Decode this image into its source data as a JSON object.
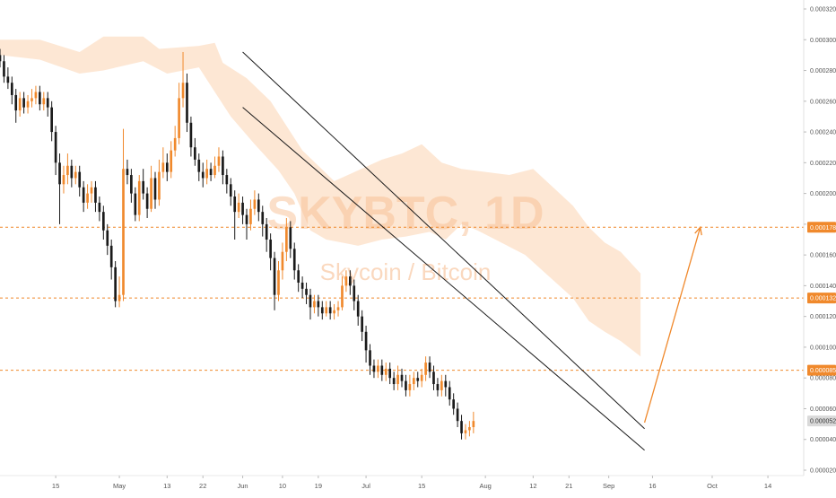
{
  "chart_data": {
    "type": "candlestick",
    "watermark": {
      "symbol": "SKYBTC, 1D",
      "description": "Skycoin / Bitcoin"
    },
    "ylim": [
      2e-05,
      0.00032
    ],
    "y_ticks": [
      "0.000020",
      "0.000040",
      "0.000060",
      "0.000080",
      "0.000100",
      "0.000120",
      "0.000140",
      "0.000160",
      "0.000180",
      "0.000200",
      "0.000220",
      "0.000240",
      "0.000260",
      "0.000280",
      "0.000300",
      "0.000320"
    ],
    "x_ticks": [
      "15",
      "May",
      "13",
      "22",
      "Jun",
      "10",
      "19",
      "Jul",
      "15",
      "Aug",
      "12",
      "21",
      "Sep",
      "16",
      "Oct",
      "14"
    ],
    "x_tick_days": [
      -2,
      14,
      26,
      35,
      45,
      55,
      64,
      76,
      90,
      106,
      118,
      127,
      137,
      148,
      163,
      177
    ],
    "xlim_days": [
      -16,
      186
    ],
    "price_labels": [
      {
        "text": "0.000178",
        "value": 0.000178,
        "color": "#f0892c",
        "line": true
      },
      {
        "text": "0.000132",
        "value": 0.000132,
        "color": "#f0892c",
        "line": true
      },
      {
        "text": "0.000085",
        "value": 8.5e-05,
        "color": "#f0892c",
        "line": true
      },
      {
        "text": "0.000052",
        "value": 5.2e-05,
        "color": "#d9d9d9",
        "line": false
      }
    ],
    "colors": {
      "up": "#f0892c",
      "down": "#1a1a1a",
      "cloud": "#fde3cd",
      "level": "#f0892c",
      "trend": "#1a1a1a"
    },
    "wedge_upper": [
      [
        45,
        0.000292
      ],
      [
        146,
        4.7e-05
      ]
    ],
    "wedge_lower": [
      [
        45,
        0.000256
      ],
      [
        146,
        3.3e-05
      ]
    ],
    "projection": [
      [
        146,
        5.1e-05
      ],
      [
        160,
        0.000178
      ]
    ],
    "cloud_top": [
      [
        -16,
        0.0003
      ],
      [
        -6,
        0.0003
      ],
      [
        4,
        0.000292
      ],
      [
        10,
        0.000302
      ],
      [
        20,
        0.000302
      ],
      [
        24,
        0.000294
      ],
      [
        34,
        0.000296
      ],
      [
        38,
        0.000298
      ],
      [
        40,
        0.000285
      ],
      [
        46,
        0.000275
      ],
      [
        52,
        0.00026
      ],
      [
        60,
        0.000228
      ],
      [
        68,
        0.000208
      ],
      [
        74,
        0.000215
      ],
      [
        80,
        0.000222
      ],
      [
        85,
        0.000226
      ],
      [
        90,
        0.000232
      ],
      [
        95,
        0.00022
      ],
      [
        100,
        0.000216
      ],
      [
        106,
        0.000214
      ],
      [
        112,
        0.000212
      ],
      [
        118,
        0.000216
      ],
      [
        123,
        0.000204
      ],
      [
        128,
        0.000192
      ],
      [
        132,
        0.000178
      ],
      [
        136,
        0.000168
      ],
      [
        140,
        0.000162
      ],
      [
        145,
        0.000148
      ]
    ],
    "cloud_bottom": [
      [
        -16,
        0.00029
      ],
      [
        -6,
        0.000287
      ],
      [
        4,
        0.000278
      ],
      [
        10,
        0.00028
      ],
      [
        20,
        0.000286
      ],
      [
        26,
        0.000278
      ],
      [
        34,
        0.000282
      ],
      [
        38,
        0.000266
      ],
      [
        42,
        0.00025
      ],
      [
        48,
        0.000232
      ],
      [
        54,
        0.000215
      ],
      [
        58,
        0.0002
      ],
      [
        62,
        0.000176
      ],
      [
        66,
        0.00017
      ],
      [
        70,
        0.000168
      ],
      [
        74,
        0.000166
      ],
      [
        80,
        0.00017
      ],
      [
        86,
        0.000172
      ],
      [
        92,
        0.000175
      ],
      [
        96,
        0.00017
      ],
      [
        100,
        0.00018
      ],
      [
        104,
        0.000176
      ],
      [
        110,
        0.000168
      ],
      [
        116,
        0.00016
      ],
      [
        122,
        0.000146
      ],
      [
        128,
        0.000132
      ],
      [
        132,
        0.000117
      ],
      [
        136,
        0.00011
      ],
      [
        140,
        0.000104
      ],
      [
        145,
        9.4e-05
      ]
    ],
    "candles": [
      [
        -16,
        0.00029,
        0.000286,
        0.000294,
        0.000282
      ],
      [
        -15,
        0.000286,
        0.000276,
        0.00029,
        0.000272
      ],
      [
        -14,
        0.000276,
        0.000272,
        0.000282,
        0.000268
      ],
      [
        -13,
        0.000272,
        0.000264,
        0.000276,
        0.000258
      ],
      [
        -12,
        0.000264,
        0.000254,
        0.000268,
        0.000246
      ],
      [
        -11,
        0.000254,
        0.000262,
        0.000266,
        0.00025
      ],
      [
        -10,
        0.000262,
        0.000256,
        0.000266,
        0.000252
      ],
      [
        -9,
        0.000256,
        0.00026,
        0.000264,
        0.000252
      ],
      [
        -8,
        0.00026,
        0.000262,
        0.000268,
        0.000256
      ],
      [
        -7,
        0.000262,
        0.000266,
        0.00027,
        0.000258
      ],
      [
        -6,
        0.000266,
        0.000258,
        0.00027,
        0.000254
      ],
      [
        -5,
        0.000258,
        0.000262,
        0.000266,
        0.000254
      ],
      [
        -4,
        0.000262,
        0.000256,
        0.000266,
        0.00025
      ],
      [
        -3,
        0.000256,
        0.00024,
        0.00026,
        0.000234
      ],
      [
        -2,
        0.00024,
        0.00022,
        0.000244,
        0.000212
      ],
      [
        -1,
        0.00022,
        0.000206,
        0.000226,
        0.00018
      ],
      [
        0,
        0.000206,
        0.000212,
        0.000218,
        0.0002
      ],
      [
        1,
        0.000212,
        0.000218,
        0.000226,
        0.000206
      ],
      [
        2,
        0.000218,
        0.00021,
        0.000222,
        0.000204
      ],
      [
        3,
        0.00021,
        0.000214,
        0.000218,
        0.000206
      ],
      [
        4,
        0.000214,
        0.000204,
        0.000218,
        0.000198
      ],
      [
        5,
        0.000204,
        0.000194,
        0.000208,
        0.000188
      ],
      [
        6,
        0.000194,
        0.0002,
        0.000206,
        0.00019
      ],
      [
        7,
        0.0002,
        0.000204,
        0.000208,
        0.000194
      ],
      [
        8,
        0.000204,
        0.000194,
        0.000208,
        0.000188
      ],
      [
        9,
        0.000194,
        0.000188,
        0.000198,
        0.000182
      ],
      [
        10,
        0.000188,
        0.000176,
        0.000192,
        0.00017
      ],
      [
        11,
        0.000176,
        0.000166,
        0.00018,
        0.00016
      ],
      [
        12,
        0.000166,
        0.000152,
        0.00017,
        0.000144
      ],
      [
        13,
        0.000152,
        0.00013,
        0.000156,
        0.000126
      ],
      [
        14,
        0.00013,
        0.000134,
        0.000146,
        0.000126
      ],
      [
        15,
        0.000134,
        0.000216,
        0.000242,
        0.00013
      ],
      [
        16,
        0.000216,
        0.000212,
        0.000222,
        0.000206
      ],
      [
        17,
        0.000212,
        0.0002,
        0.000216,
        0.000194
      ],
      [
        18,
        0.0002,
        0.000186,
        0.000204,
        0.000182
      ],
      [
        19,
        0.000186,
        0.000208,
        0.000212,
        0.000182
      ],
      [
        20,
        0.000208,
        0.0002,
        0.000216,
        0.000196
      ],
      [
        21,
        0.0002,
        0.00019,
        0.000204,
        0.000184
      ],
      [
        22,
        0.00019,
        0.00021,
        0.000218,
        0.000188
      ],
      [
        23,
        0.00021,
        0.000196,
        0.000214,
        0.00019
      ],
      [
        24,
        0.000196,
        0.000214,
        0.000222,
        0.000192
      ],
      [
        25,
        0.000214,
        0.00022,
        0.00023,
        0.00021
      ],
      [
        26,
        0.00022,
        0.000214,
        0.000226,
        0.000208
      ],
      [
        27,
        0.000214,
        0.000228,
        0.000234,
        0.00021
      ],
      [
        28,
        0.000228,
        0.000236,
        0.000244,
        0.000224
      ],
      [
        29,
        0.000236,
        0.000262,
        0.000272,
        0.000232
      ],
      [
        30,
        0.000262,
        0.000272,
        0.000292,
        0.000256
      ],
      [
        31,
        0.000272,
        0.000246,
        0.000278,
        0.00024
      ],
      [
        32,
        0.000246,
        0.00023,
        0.00025,
        0.000224
      ],
      [
        33,
        0.00023,
        0.000222,
        0.000236,
        0.000218
      ],
      [
        34,
        0.000222,
        0.000214,
        0.000226,
        0.000208
      ],
      [
        35,
        0.000214,
        0.00021,
        0.00022,
        0.000204
      ],
      [
        36,
        0.00021,
        0.000216,
        0.000222,
        0.000206
      ],
      [
        37,
        0.000216,
        0.000212,
        0.00022,
        0.000208
      ],
      [
        38,
        0.000212,
        0.000218,
        0.000224,
        0.00021
      ],
      [
        39,
        0.000218,
        0.000224,
        0.00023,
        0.000214
      ],
      [
        40,
        0.000224,
        0.000212,
        0.000228,
        0.000206
      ],
      [
        41,
        0.000212,
        0.000206,
        0.000216,
        0.0002
      ],
      [
        42,
        0.000206,
        0.000198,
        0.00021,
        0.000192
      ],
      [
        43,
        0.000198,
        0.000188,
        0.000202,
        0.00017
      ],
      [
        44,
        0.000188,
        0.000194,
        0.0002,
        0.000184
      ],
      [
        45,
        0.000194,
        0.000186,
        0.000198,
        0.00018
      ],
      [
        46,
        0.000186,
        0.00018,
        0.00019,
        0.00017
      ],
      [
        47,
        0.00018,
        0.00019,
        0.000196,
        0.000176
      ],
      [
        48,
        0.00019,
        0.000196,
        0.000202,
        0.000186
      ],
      [
        49,
        0.000196,
        0.000188,
        0.0002,
        0.000182
      ],
      [
        50,
        0.000188,
        0.00018,
        0.000192,
        0.000172
      ],
      [
        51,
        0.00018,
        0.00017,
        0.000184,
        0.000162
      ],
      [
        52,
        0.00017,
        0.000158,
        0.000174,
        0.00015
      ],
      [
        53,
        0.000158,
        0.000134,
        0.000162,
        0.000124
      ],
      [
        54,
        0.000134,
        0.00015,
        0.000156,
        0.00013
      ],
      [
        55,
        0.00015,
        0.000162,
        0.000168,
        0.000144
      ],
      [
        56,
        0.000162,
        0.000178,
        0.000184,
        0.000156
      ],
      [
        57,
        0.000178,
        0.000164,
        0.000182,
        0.000158
      ],
      [
        58,
        0.000164,
        0.00015,
        0.000168,
        0.000144
      ],
      [
        59,
        0.00015,
        0.000142,
        0.000154,
        0.000136
      ],
      [
        60,
        0.000142,
        0.000138,
        0.000146,
        0.000132
      ],
      [
        61,
        0.000138,
        0.000134,
        0.000142,
        0.000128
      ],
      [
        62,
        0.000134,
        0.000126,
        0.000138,
        0.000118
      ],
      [
        63,
        0.000126,
        0.00013,
        0.000134,
        0.000122
      ],
      [
        64,
        0.00013,
        0.000126,
        0.000134,
        0.00012
      ],
      [
        65,
        0.000126,
        0.000122,
        0.00013,
        0.000118
      ],
      [
        66,
        0.000122,
        0.000126,
        0.00013,
        0.00012
      ],
      [
        67,
        0.000126,
        0.000122,
        0.00013,
        0.000118
      ],
      [
        68,
        0.000122,
        0.000124,
        0.000128,
        0.000118
      ],
      [
        69,
        0.000124,
        0.000126,
        0.00013,
        0.00012
      ],
      [
        70,
        0.000126,
        0.00014,
        0.000146,
        0.000124
      ],
      [
        71,
        0.00014,
        0.000146,
        0.00015,
        0.000136
      ],
      [
        72,
        0.000146,
        0.00014,
        0.00015,
        0.000134
      ],
      [
        73,
        0.00014,
        0.00013,
        0.000144,
        0.000124
      ],
      [
        74,
        0.00013,
        0.00012,
        0.000134,
        0.000114
      ],
      [
        75,
        0.00012,
        0.00011,
        0.000124,
        0.000104
      ],
      [
        76,
        0.00011,
        9.8e-05,
        0.000114,
        9e-05
      ],
      [
        77,
        9.8e-05,
        8.8e-05,
        0.000102,
        8.2e-05
      ],
      [
        78,
        8.8e-05,
        8.4e-05,
        9.2e-05,
        8e-05
      ],
      [
        79,
        8.4e-05,
        8.8e-05,
        9.2e-05,
        8e-05
      ],
      [
        80,
        8.8e-05,
        8.2e-05,
        9.2e-05,
        7.8e-05
      ],
      [
        81,
        8.2e-05,
        8.6e-05,
        9e-05,
        7.8e-05
      ],
      [
        82,
        8.6e-05,
        8e-05,
        9e-05,
        7.6e-05
      ],
      [
        83,
        8e-05,
        7.6e-05,
        8.4e-05,
        7.2e-05
      ],
      [
        84,
        7.6e-05,
        8.2e-05,
        8.8e-05,
        7.2e-05
      ],
      [
        85,
        8.2e-05,
        7.8e-05,
        8.6e-05,
        7.4e-05
      ],
      [
        86,
        7.8e-05,
        7.2e-05,
        8.2e-05,
        6.8e-05
      ],
      [
        87,
        7.2e-05,
        7.6e-05,
        8.2e-05,
        6.8e-05
      ],
      [
        88,
        7.6e-05,
        8e-05,
        8.4e-05,
        7.2e-05
      ],
      [
        89,
        8e-05,
        7.8e-05,
        8.4e-05,
        7.4e-05
      ],
      [
        90,
        7.8e-05,
        8.2e-05,
        8.6e-05,
        7.4e-05
      ],
      [
        91,
        8.2e-05,
        9e-05,
        9.4e-05,
        7.8e-05
      ],
      [
        92,
        9e-05,
        8.4e-05,
        9.4e-05,
        8e-05
      ],
      [
        93,
        8.4e-05,
        7.6e-05,
        8.8e-05,
        7.2e-05
      ],
      [
        94,
        7.6e-05,
        7.2e-05,
        8e-05,
        6.8e-05
      ],
      [
        95,
        7.2e-05,
        7.8e-05,
        8.2e-05,
        6.8e-05
      ],
      [
        96,
        7.8e-05,
        7.4e-05,
        8.2e-05,
        6.8e-05
      ],
      [
        97,
        7.4e-05,
        6.6e-05,
        7.8e-05,
        6.2e-05
      ],
      [
        98,
        6.6e-05,
        6e-05,
        7e-05,
        5.6e-05
      ],
      [
        99,
        6e-05,
        5.2e-05,
        6.4e-05,
        4.8e-05
      ],
      [
        100,
        5.2e-05,
        4.4e-05,
        5.6e-05,
        4e-05
      ],
      [
        101,
        4.4e-05,
        4.6e-05,
        5e-05,
        4e-05
      ],
      [
        102,
        4.6e-05,
        4.8e-05,
        5.2e-05,
        4.2e-05
      ],
      [
        103,
        4.8e-05,
        5.2e-05,
        5.8e-05,
        4.4e-05
      ]
    ]
  }
}
